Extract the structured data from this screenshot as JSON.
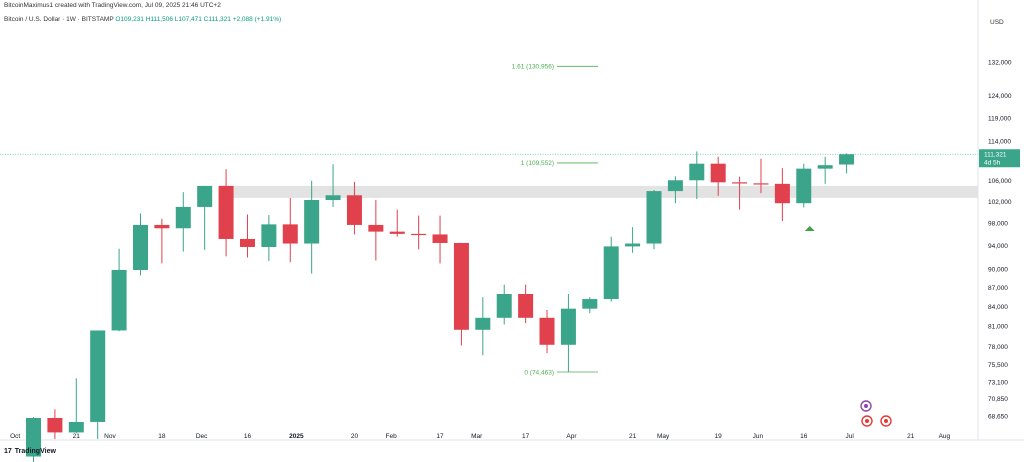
{
  "header": {
    "credit": "BitcoinMaximus1 created with TradingView.com, Jul 09, 2025 21:46 UTC+2"
  },
  "symbol": {
    "name": "Bitcoin / U.S. Dollar · 1W · BITSTAMP",
    "ohlc": "O109,231 H111,506 L107,471 C111,321",
    "change": "+2,088 (+1.91%)"
  },
  "currency": "USD",
  "brand": {
    "logo_mark": "17",
    "name": "TradingView"
  },
  "colors": {
    "up": "#3aa58a",
    "down": "#e0414c",
    "fib": "#4caf50",
    "zone": "#e3e3e3",
    "current_price_line": "#5bbfb0"
  },
  "chart_data": {
    "type": "candlestick",
    "interval": "1W",
    "y_scale": "log",
    "y_ticks": [
      "132,000",
      "124,000",
      "119,000",
      "114,000",
      "106,000",
      "102,000",
      "98,000",
      "94,000",
      "90,000",
      "87,000",
      "84,000",
      "81,000",
      "78,000",
      "75,500",
      "73,100",
      "70,850",
      "68,650"
    ],
    "y_tick_values": [
      132000,
      124000,
      119000,
      114000,
      106000,
      102000,
      98000,
      94000,
      90000,
      87000,
      84000,
      81000,
      78000,
      75500,
      73100,
      70850,
      68650
    ],
    "x_ticks": [
      {
        "label": "Oct",
        "date": "2024-10-01"
      },
      {
        "label": "21",
        "date": "2024-10-21"
      },
      {
        "label": "Nov",
        "date": "2024-11-01"
      },
      {
        "label": "18",
        "date": "2024-11-18"
      },
      {
        "label": "Dec",
        "date": "2024-12-01"
      },
      {
        "label": "16",
        "date": "2024-12-16"
      },
      {
        "label": "2025",
        "date": "2025-01-01"
      },
      {
        "label": "20",
        "date": "2025-01-20"
      },
      {
        "label": "Feb",
        "date": "2025-02-01"
      },
      {
        "label": "17",
        "date": "2025-02-17"
      },
      {
        "label": "Mar",
        "date": "2025-03-01"
      },
      {
        "label": "17",
        "date": "2025-03-17"
      },
      {
        "label": "Apr",
        "date": "2025-04-01"
      },
      {
        "label": "21",
        "date": "2025-04-21"
      },
      {
        "label": "May",
        "date": "2025-05-01"
      },
      {
        "label": "19",
        "date": "2025-05-19"
      },
      {
        "label": "Jun",
        "date": "2025-06-01"
      },
      {
        "label": "16",
        "date": "2025-06-16"
      },
      {
        "label": "Jul",
        "date": "2025-07-01"
      },
      {
        "label": "21",
        "date": "2025-07-21"
      },
      {
        "label": "Aug",
        "date": "2025-08-01"
      }
    ],
    "x_range": [
      "2024-09-28",
      "2025-08-12"
    ],
    "candles": [
      {
        "date": "2024-10-07",
        "o": 63700,
        "h": 68500,
        "l": 63000,
        "c": 68400
      },
      {
        "date": "2024-10-14",
        "o": 68400,
        "h": 69500,
        "l": 65800,
        "c": 66600
      },
      {
        "date": "2024-10-21",
        "o": 66600,
        "h": 73600,
        "l": 66500,
        "c": 67900
      },
      {
        "date": "2024-10-28",
        "o": 67900,
        "h": 80200,
        "l": 65800,
        "c": 80400
      },
      {
        "date": "2024-11-04",
        "o": 80400,
        "h": 93500,
        "l": 80300,
        "c": 89900
      },
      {
        "date": "2024-11-11",
        "o": 89900,
        "h": 99800,
        "l": 89000,
        "c": 97700
      },
      {
        "date": "2024-11-18",
        "o": 97700,
        "h": 98800,
        "l": 91000,
        "c": 97100
      },
      {
        "date": "2024-11-25",
        "o": 97100,
        "h": 103800,
        "l": 93000,
        "c": 101000
      },
      {
        "date": "2024-12-02",
        "o": 101000,
        "h": 105000,
        "l": 93300,
        "c": 105000
      },
      {
        "date": "2024-12-09",
        "o": 105000,
        "h": 108300,
        "l": 92200,
        "c": 95200
      },
      {
        "date": "2024-12-16",
        "o": 95200,
        "h": 99600,
        "l": 92000,
        "c": 93800
      },
      {
        "date": "2024-12-23",
        "o": 93800,
        "h": 99500,
        "l": 91400,
        "c": 97800
      },
      {
        "date": "2024-12-30",
        "o": 97800,
        "h": 102700,
        "l": 91200,
        "c": 94400
      },
      {
        "date": "2025-01-06",
        "o": 94400,
        "h": 106000,
        "l": 89300,
        "c": 102300
      },
      {
        "date": "2025-01-13",
        "o": 102300,
        "h": 109300,
        "l": 101000,
        "c": 103200
      },
      {
        "date": "2025-01-20",
        "o": 103200,
        "h": 105800,
        "l": 96000,
        "c": 97700
      },
      {
        "date": "2025-01-27",
        "o": 97700,
        "h": 102300,
        "l": 91500,
        "c": 96500
      },
      {
        "date": "2025-02-03",
        "o": 96500,
        "h": 100500,
        "l": 95600,
        "c": 96100
      },
      {
        "date": "2025-02-10",
        "o": 96100,
        "h": 99400,
        "l": 93400,
        "c": 96000
      },
      {
        "date": "2025-02-17",
        "o": 96000,
        "h": 99400,
        "l": 91000,
        "c": 94500
      },
      {
        "date": "2025-02-24",
        "o": 94500,
        "h": 94500,
        "l": 78200,
        "c": 80500
      },
      {
        "date": "2025-03-03",
        "o": 80500,
        "h": 85500,
        "l": 76800,
        "c": 82300
      },
      {
        "date": "2025-03-10",
        "o": 82300,
        "h": 87500,
        "l": 81300,
        "c": 86000
      },
      {
        "date": "2025-03-17",
        "o": 86000,
        "h": 87500,
        "l": 81500,
        "c": 82300
      },
      {
        "date": "2025-03-24",
        "o": 82300,
        "h": 83500,
        "l": 77100,
        "c": 78300
      },
      {
        "date": "2025-03-31",
        "o": 78300,
        "h": 86000,
        "l": 74463,
        "c": 83700
      },
      {
        "date": "2025-04-07",
        "o": 83700,
        "h": 85500,
        "l": 83000,
        "c": 85200
      },
      {
        "date": "2025-04-14",
        "o": 85200,
        "h": 95600,
        "l": 84800,
        "c": 93900
      },
      {
        "date": "2025-04-21",
        "o": 93900,
        "h": 97300,
        "l": 92800,
        "c": 94400
      },
      {
        "date": "2025-04-28",
        "o": 94400,
        "h": 104200,
        "l": 93400,
        "c": 104000
      },
      {
        "date": "2025-05-05",
        "o": 104000,
        "h": 106900,
        "l": 101700,
        "c": 106100
      },
      {
        "date": "2025-05-12",
        "o": 106100,
        "h": 111900,
        "l": 102500,
        "c": 109400
      },
      {
        "date": "2025-05-19",
        "o": 109400,
        "h": 110800,
        "l": 103100,
        "c": 105700
      },
      {
        "date": "2025-05-26",
        "o": 105700,
        "h": 106800,
        "l": 100500,
        "c": 105500
      },
      {
        "date": "2025-06-02",
        "o": 105500,
        "h": 110400,
        "l": 103600,
        "c": 105400
      },
      {
        "date": "2025-06-09",
        "o": 105400,
        "h": 108500,
        "l": 98400,
        "c": 101700
      },
      {
        "date": "2025-06-16",
        "o": 101700,
        "h": 109400,
        "l": 100900,
        "c": 108400
      },
      {
        "date": "2025-06-23",
        "o": 108400,
        "h": 110800,
        "l": 105400,
        "c": 109100
      },
      {
        "date": "2025-06-30",
        "o": 109231,
        "h": 111506,
        "l": 107471,
        "c": 111321
      }
    ],
    "fib_levels": [
      {
        "label": "1.61 (130,956)",
        "value": 130956
      },
      {
        "label": "1 (109,552)",
        "value": 109552
      },
      {
        "label": "0 (74,463)",
        "value": 74463
      }
    ],
    "zone": {
      "from": 102700,
      "to": 105000
    },
    "current_price": {
      "value": 111321,
      "label": "111,321",
      "countdown": "4d 5h"
    },
    "marker": {
      "type": "triangle-up",
      "date": "2025-06-16"
    }
  }
}
